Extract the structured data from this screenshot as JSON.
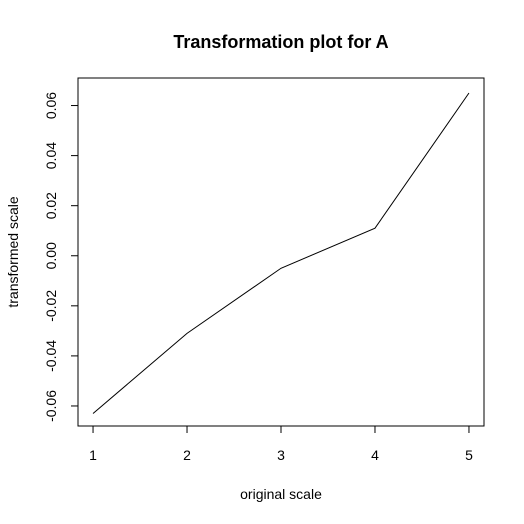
{
  "chart_data": {
    "type": "line",
    "title": "Transformation plot for A",
    "xlabel": "original scale",
    "ylabel": "transformed scale",
    "x": [
      1,
      2,
      3,
      4,
      5
    ],
    "series": [
      {
        "values": [
          -0.063,
          -0.031,
          -0.005,
          0.011,
          0.065
        ]
      }
    ],
    "xlim": [
      0.84,
      5.16
    ],
    "ylim": [
      -0.068,
      0.071
    ],
    "x_ticks": [
      1,
      2,
      3,
      4,
      5
    ],
    "x_tick_labels": [
      "1",
      "2",
      "3",
      "4",
      "5"
    ],
    "y_ticks": [
      -0.06,
      -0.04,
      -0.02,
      0.0,
      0.02,
      0.04,
      0.06
    ],
    "y_tick_labels": [
      "-0.06",
      "-0.04",
      "-0.02",
      "0.00",
      "0.02",
      "0.04",
      "0.06"
    ],
    "line_color": "#000000",
    "grid": false,
    "legend": "none"
  }
}
